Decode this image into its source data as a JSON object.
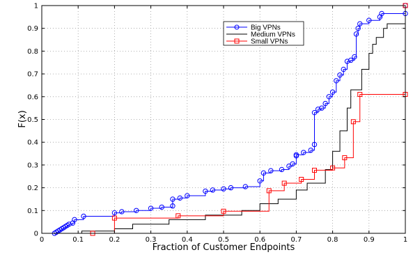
{
  "chart_data": {
    "type": "line",
    "title": "",
    "xlabel": "Fraction of Customer Endpoints",
    "ylabel": "F(x)",
    "xlim": [
      0,
      1
    ],
    "ylim": [
      0,
      1
    ],
    "xticks": [
      "0",
      "0.1",
      "0.2",
      "0.3",
      "0.4",
      "0.5",
      "0.6",
      "0.7",
      "0.8",
      "0.9",
      "1"
    ],
    "yticks": [
      "0",
      "0.1",
      "0.2",
      "0.3",
      "0.4",
      "0.5",
      "0.6",
      "0.7",
      "0.8",
      "0.9",
      "1"
    ],
    "grid": true,
    "legend_position": "upper-right",
    "series": [
      {
        "name": "Big VPNs",
        "color": "#0000ff",
        "marker": "circle",
        "step": true,
        "points": [
          [
            0.035,
            0.0
          ],
          [
            0.04,
            0.005
          ],
          [
            0.045,
            0.01
          ],
          [
            0.05,
            0.015
          ],
          [
            0.055,
            0.02
          ],
          [
            0.06,
            0.025
          ],
          [
            0.065,
            0.03
          ],
          [
            0.07,
            0.035
          ],
          [
            0.075,
            0.04
          ],
          [
            0.085,
            0.045
          ],
          [
            0.09,
            0.06
          ],
          [
            0.115,
            0.075
          ],
          [
            0.2,
            0.09
          ],
          [
            0.22,
            0.095
          ],
          [
            0.26,
            0.1
          ],
          [
            0.3,
            0.11
          ],
          [
            0.33,
            0.115
          ],
          [
            0.36,
            0.12
          ],
          [
            0.36,
            0.15
          ],
          [
            0.38,
            0.155
          ],
          [
            0.4,
            0.165
          ],
          [
            0.45,
            0.185
          ],
          [
            0.47,
            0.19
          ],
          [
            0.5,
            0.195
          ],
          [
            0.52,
            0.2
          ],
          [
            0.56,
            0.205
          ],
          [
            0.6,
            0.23
          ],
          [
            0.61,
            0.265
          ],
          [
            0.63,
            0.275
          ],
          [
            0.66,
            0.28
          ],
          [
            0.68,
            0.295
          ],
          [
            0.69,
            0.305
          ],
          [
            0.7,
            0.34
          ],
          [
            0.7,
            0.345
          ],
          [
            0.72,
            0.355
          ],
          [
            0.74,
            0.365
          ],
          [
            0.75,
            0.39
          ],
          [
            0.75,
            0.53
          ],
          [
            0.76,
            0.545
          ],
          [
            0.77,
            0.55
          ],
          [
            0.78,
            0.57
          ],
          [
            0.79,
            0.6
          ],
          [
            0.8,
            0.62
          ],
          [
            0.81,
            0.67
          ],
          [
            0.82,
            0.695
          ],
          [
            0.83,
            0.72
          ],
          [
            0.84,
            0.755
          ],
          [
            0.85,
            0.76
          ],
          [
            0.86,
            0.775
          ],
          [
            0.865,
            0.875
          ],
          [
            0.87,
            0.9
          ],
          [
            0.875,
            0.92
          ],
          [
            0.9,
            0.935
          ],
          [
            0.93,
            0.95
          ],
          [
            0.935,
            0.965
          ],
          [
            1.0,
            0.965
          ],
          [
            1.0,
            1.0
          ]
        ]
      },
      {
        "name": "Medium VPNs",
        "color": "#000000",
        "marker": "none",
        "step": true,
        "points": [
          [
            0.09,
            0.0
          ],
          [
            0.11,
            0.01
          ],
          [
            0.2,
            0.02
          ],
          [
            0.25,
            0.04
          ],
          [
            0.35,
            0.06
          ],
          [
            0.45,
            0.08
          ],
          [
            0.55,
            0.1
          ],
          [
            0.6,
            0.13
          ],
          [
            0.65,
            0.15
          ],
          [
            0.7,
            0.19
          ],
          [
            0.73,
            0.22
          ],
          [
            0.78,
            0.28
          ],
          [
            0.8,
            0.36
          ],
          [
            0.82,
            0.45
          ],
          [
            0.84,
            0.55
          ],
          [
            0.85,
            0.63
          ],
          [
            0.88,
            0.72
          ],
          [
            0.9,
            0.79
          ],
          [
            0.91,
            0.83
          ],
          [
            0.92,
            0.86
          ],
          [
            0.94,
            0.9
          ],
          [
            0.95,
            0.92
          ],
          [
            1.0,
            0.92
          ]
        ]
      },
      {
        "name": "Small VPNs",
        "color": "#ff0000",
        "marker": "square",
        "step": true,
        "points": [
          [
            0.14,
            0.0
          ],
          [
            0.2,
            0.067
          ],
          [
            0.375,
            0.077
          ],
          [
            0.5,
            0.097
          ],
          [
            0.625,
            0.187
          ],
          [
            0.667,
            0.22
          ],
          [
            0.714,
            0.237
          ],
          [
            0.75,
            0.277
          ],
          [
            0.8,
            0.287
          ],
          [
            0.833,
            0.332
          ],
          [
            0.857,
            0.49
          ],
          [
            0.875,
            0.61
          ],
          [
            1.0,
            0.61
          ],
          [
            1.0,
            1.0
          ]
        ]
      }
    ]
  }
}
